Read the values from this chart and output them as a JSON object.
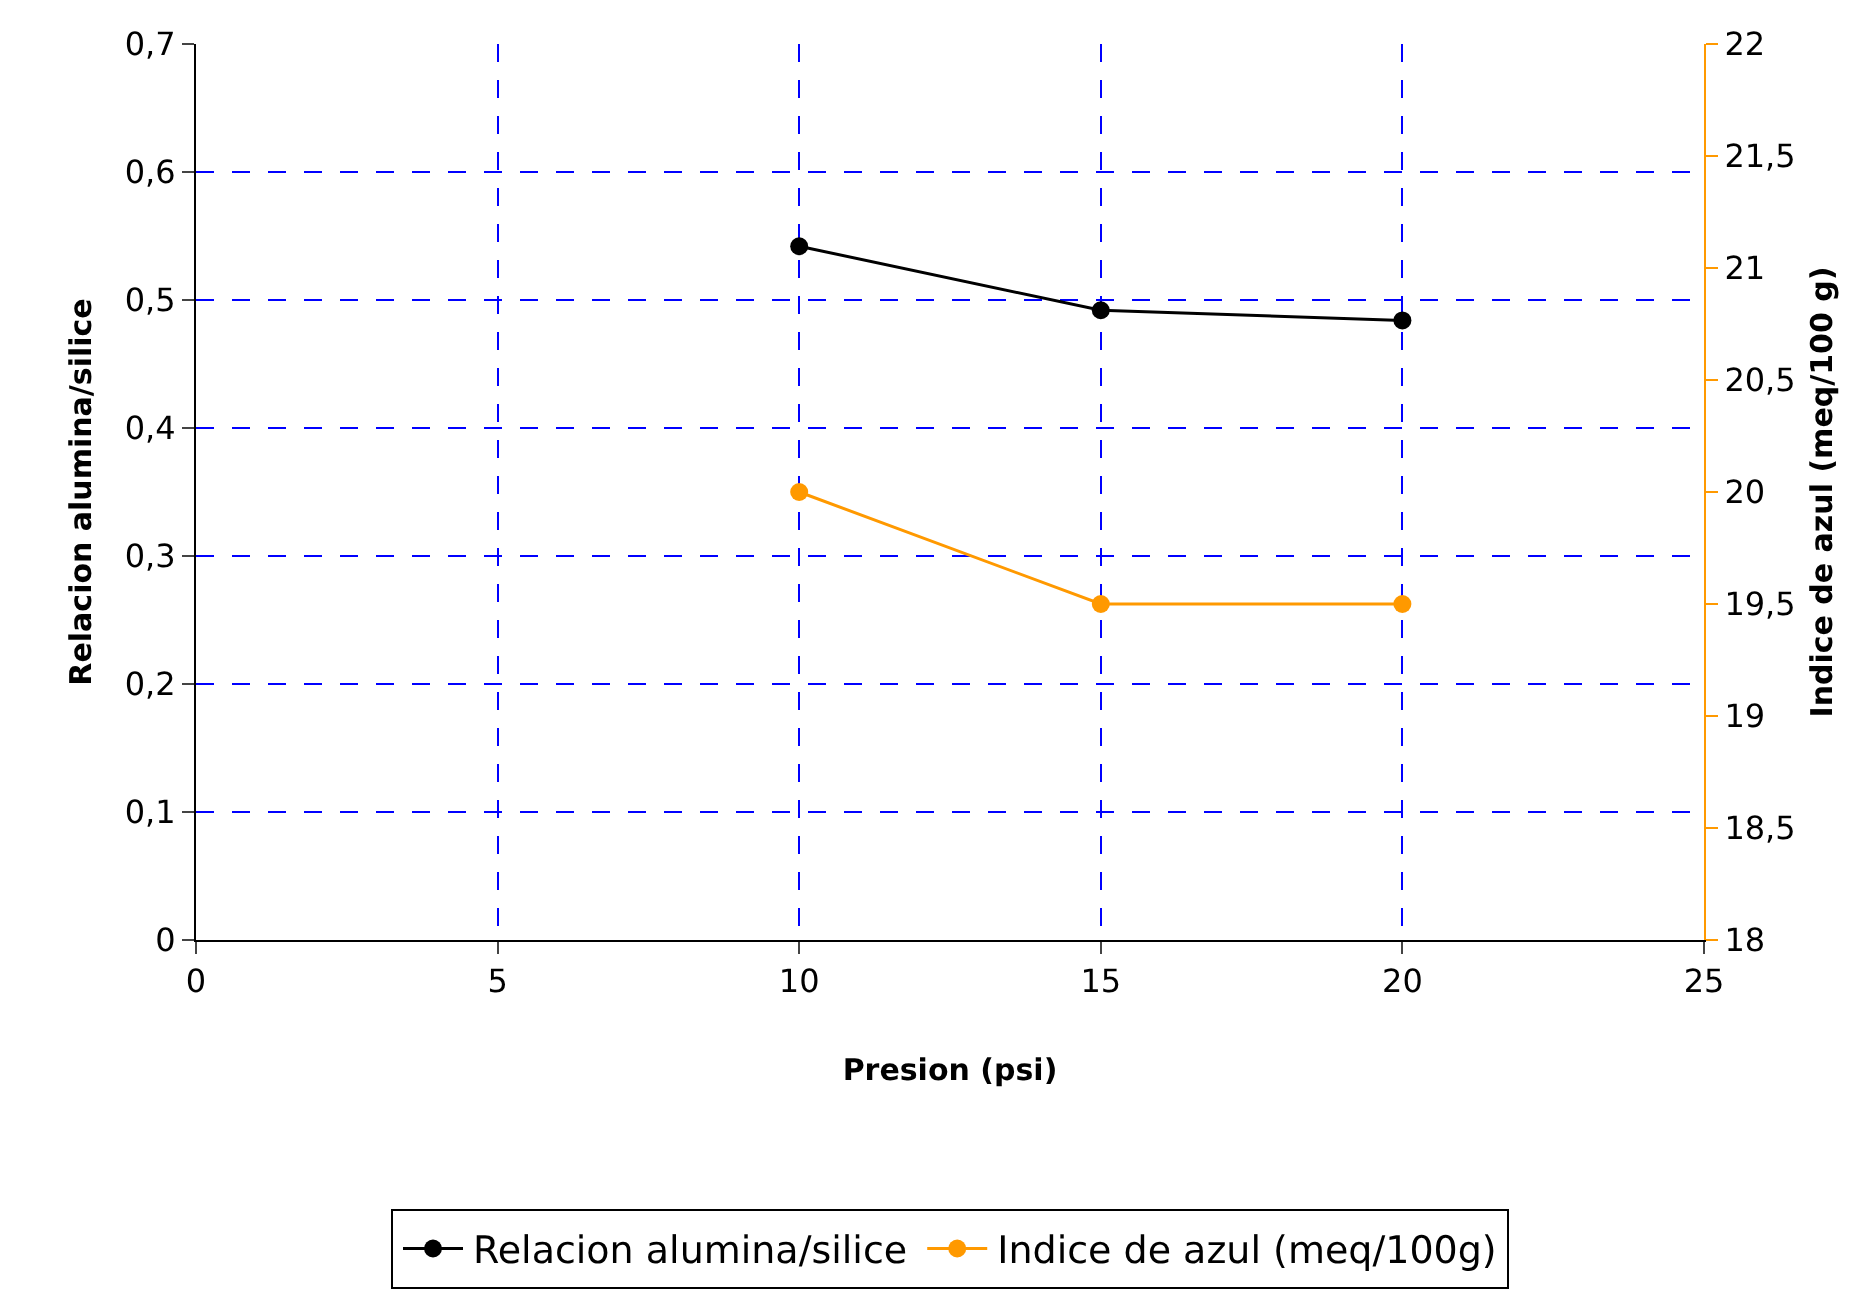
{
  "chart_data": {
    "type": "line",
    "xlabel": "Presion (psi)",
    "ylabel": "Relacion alumina/silice",
    "y2label": "Indice de azul (meq/100 g)",
    "x": [
      10,
      15,
      20
    ],
    "series": [
      {
        "name": "Relacion alumina/silice",
        "color": "#000000",
        "values": [
          0.542,
          0.492,
          0.484
        ]
      },
      {
        "name": "Indice de azul (meq/100g)",
        "color": "#ff9900",
        "values": [
          20,
          19.5,
          19.5
        ],
        "axis": "y2"
      }
    ],
    "xlim": [
      0,
      25
    ],
    "xticks": [
      0,
      5,
      10,
      15,
      20,
      25
    ],
    "ylim": [
      0,
      0.7
    ],
    "yticks": [
      0,
      {
        "value": 0.1,
        "label": "0,1"
      },
      {
        "value": 0.2,
        "label": "0,2"
      },
      {
        "value": 0.3,
        "label": "0,3"
      },
      {
        "value": 0.4,
        "label": "0,4"
      },
      {
        "value": 0.5,
        "label": "0,5"
      },
      {
        "value": 0.6,
        "label": "0,6"
      },
      {
        "value": 0.7,
        "label": "0,7"
      }
    ],
    "y2lim": [
      18,
      22
    ],
    "y2ticks": [
      18,
      {
        "value": 18.5,
        "label": "18,5"
      },
      19,
      {
        "value": 19.5,
        "label": "19,5"
      },
      20,
      {
        "value": 20.5,
        "label": "20,5"
      },
      21,
      {
        "value": 21.5,
        "label": "21,5"
      },
      22
    ],
    "grid": true,
    "legend": "bottom",
    "marker": "circle",
    "line_style": "solid"
  }
}
